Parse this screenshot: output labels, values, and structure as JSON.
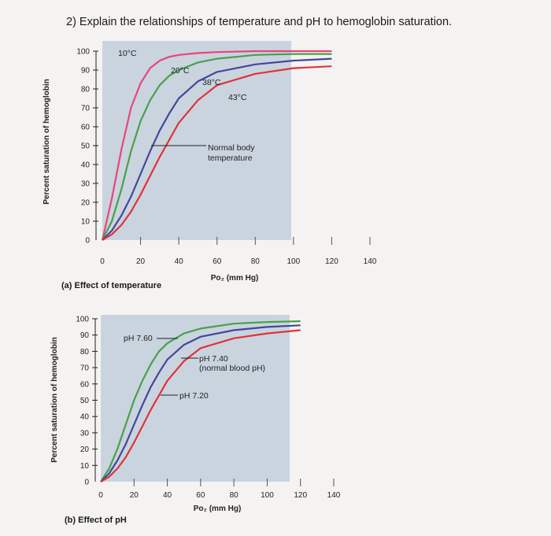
{
  "question": "2) Explain the relationships of temperature and pH to hemoglobin saturation.",
  "chart_data": [
    {
      "type": "line",
      "caption": "(a) Effect of temperature",
      "xlabel": "Po₂ (mm Hg)",
      "ylabel": "Percent saturation of hemoglobin",
      "xlim": [
        0,
        140
      ],
      "ylim": [
        0,
        100
      ],
      "x_ticks": [
        "0",
        "20",
        "40",
        "60",
        "80",
        "100",
        "120",
        "140"
      ],
      "y_ticks": [
        "0",
        "10",
        "20",
        "30",
        "40",
        "50",
        "60",
        "70",
        "80",
        "90",
        "100"
      ],
      "annotation": "Normal body temperature",
      "annotation_lines": [
        "Normal body",
        "temperature"
      ],
      "series": [
        {
          "name": "10°C",
          "color": "#e8457a",
          "x": [
            0,
            5,
            10,
            15,
            20,
            25,
            30,
            35,
            40,
            50,
            60,
            80,
            100,
            120
          ],
          "y": [
            0,
            22,
            48,
            70,
            83,
            91,
            95,
            97,
            98,
            99,
            99.5,
            100,
            100,
            100
          ]
        },
        {
          "name": "20°C",
          "color": "#4aa04a",
          "x": [
            0,
            5,
            10,
            15,
            20,
            25,
            30,
            35,
            40,
            50,
            60,
            80,
            100,
            120
          ],
          "y": [
            0,
            10,
            27,
            47,
            63,
            74,
            82,
            87,
            90,
            94,
            96,
            98,
            98.5,
            98.5
          ]
        },
        {
          "name": "38°C",
          "color": "#43479a",
          "x": [
            0,
            5,
            10,
            15,
            20,
            25,
            30,
            35,
            40,
            50,
            60,
            80,
            100,
            120
          ],
          "y": [
            0,
            5,
            13,
            23,
            35,
            47,
            58,
            67,
            75,
            84,
            89,
            93,
            95,
            96
          ]
        },
        {
          "name": "43°C",
          "color": "#e0333a",
          "x": [
            0,
            5,
            10,
            15,
            20,
            25,
            30,
            35,
            40,
            50,
            60,
            80,
            100,
            120
          ],
          "y": [
            0,
            3,
            8,
            15,
            24,
            34,
            44,
            53,
            62,
            74,
            82,
            88,
            91,
            92
          ]
        }
      ]
    },
    {
      "type": "line",
      "caption": "(b) Effect of pH",
      "xlabel": "Po₂ (mm Hg)",
      "ylabel": "Percent saturation of hemoglobin",
      "xlim": [
        0,
        140
      ],
      "ylim": [
        0,
        100
      ],
      "x_ticks": [
        "0",
        "20",
        "40",
        "60",
        "80",
        "100",
        "120",
        "140"
      ],
      "y_ticks": [
        "0",
        "10",
        "20",
        "30",
        "40",
        "50",
        "60",
        "70",
        "80",
        "90",
        "100"
      ],
      "series": [
        {
          "name": "pH 7.60",
          "color": "#4aa04a",
          "x": [
            0,
            5,
            10,
            15,
            20,
            25,
            30,
            35,
            40,
            50,
            60,
            80,
            100,
            120
          ],
          "y": [
            0,
            8,
            20,
            35,
            50,
            62,
            72,
            80,
            85,
            91,
            94,
            97,
            98,
            98.5
          ]
        },
        {
          "name": "pH 7.40 (normal blood pH)",
          "label_lines": [
            "pH 7.40",
            "(normal blood pH)"
          ],
          "color": "#43479a",
          "x": [
            0,
            5,
            10,
            15,
            20,
            25,
            30,
            35,
            40,
            50,
            60,
            80,
            100,
            120
          ],
          "y": [
            0,
            5,
            13,
            23,
            35,
            47,
            58,
            67,
            75,
            84,
            89,
            93,
            95,
            96
          ]
        },
        {
          "name": "pH 7.20",
          "color": "#e0333a",
          "x": [
            0,
            5,
            10,
            15,
            20,
            25,
            30,
            35,
            40,
            50,
            60,
            80,
            100,
            120
          ],
          "y": [
            0,
            3,
            8,
            15,
            24,
            34,
            44,
            53,
            62,
            74,
            82,
            88,
            91,
            93
          ]
        }
      ]
    }
  ]
}
